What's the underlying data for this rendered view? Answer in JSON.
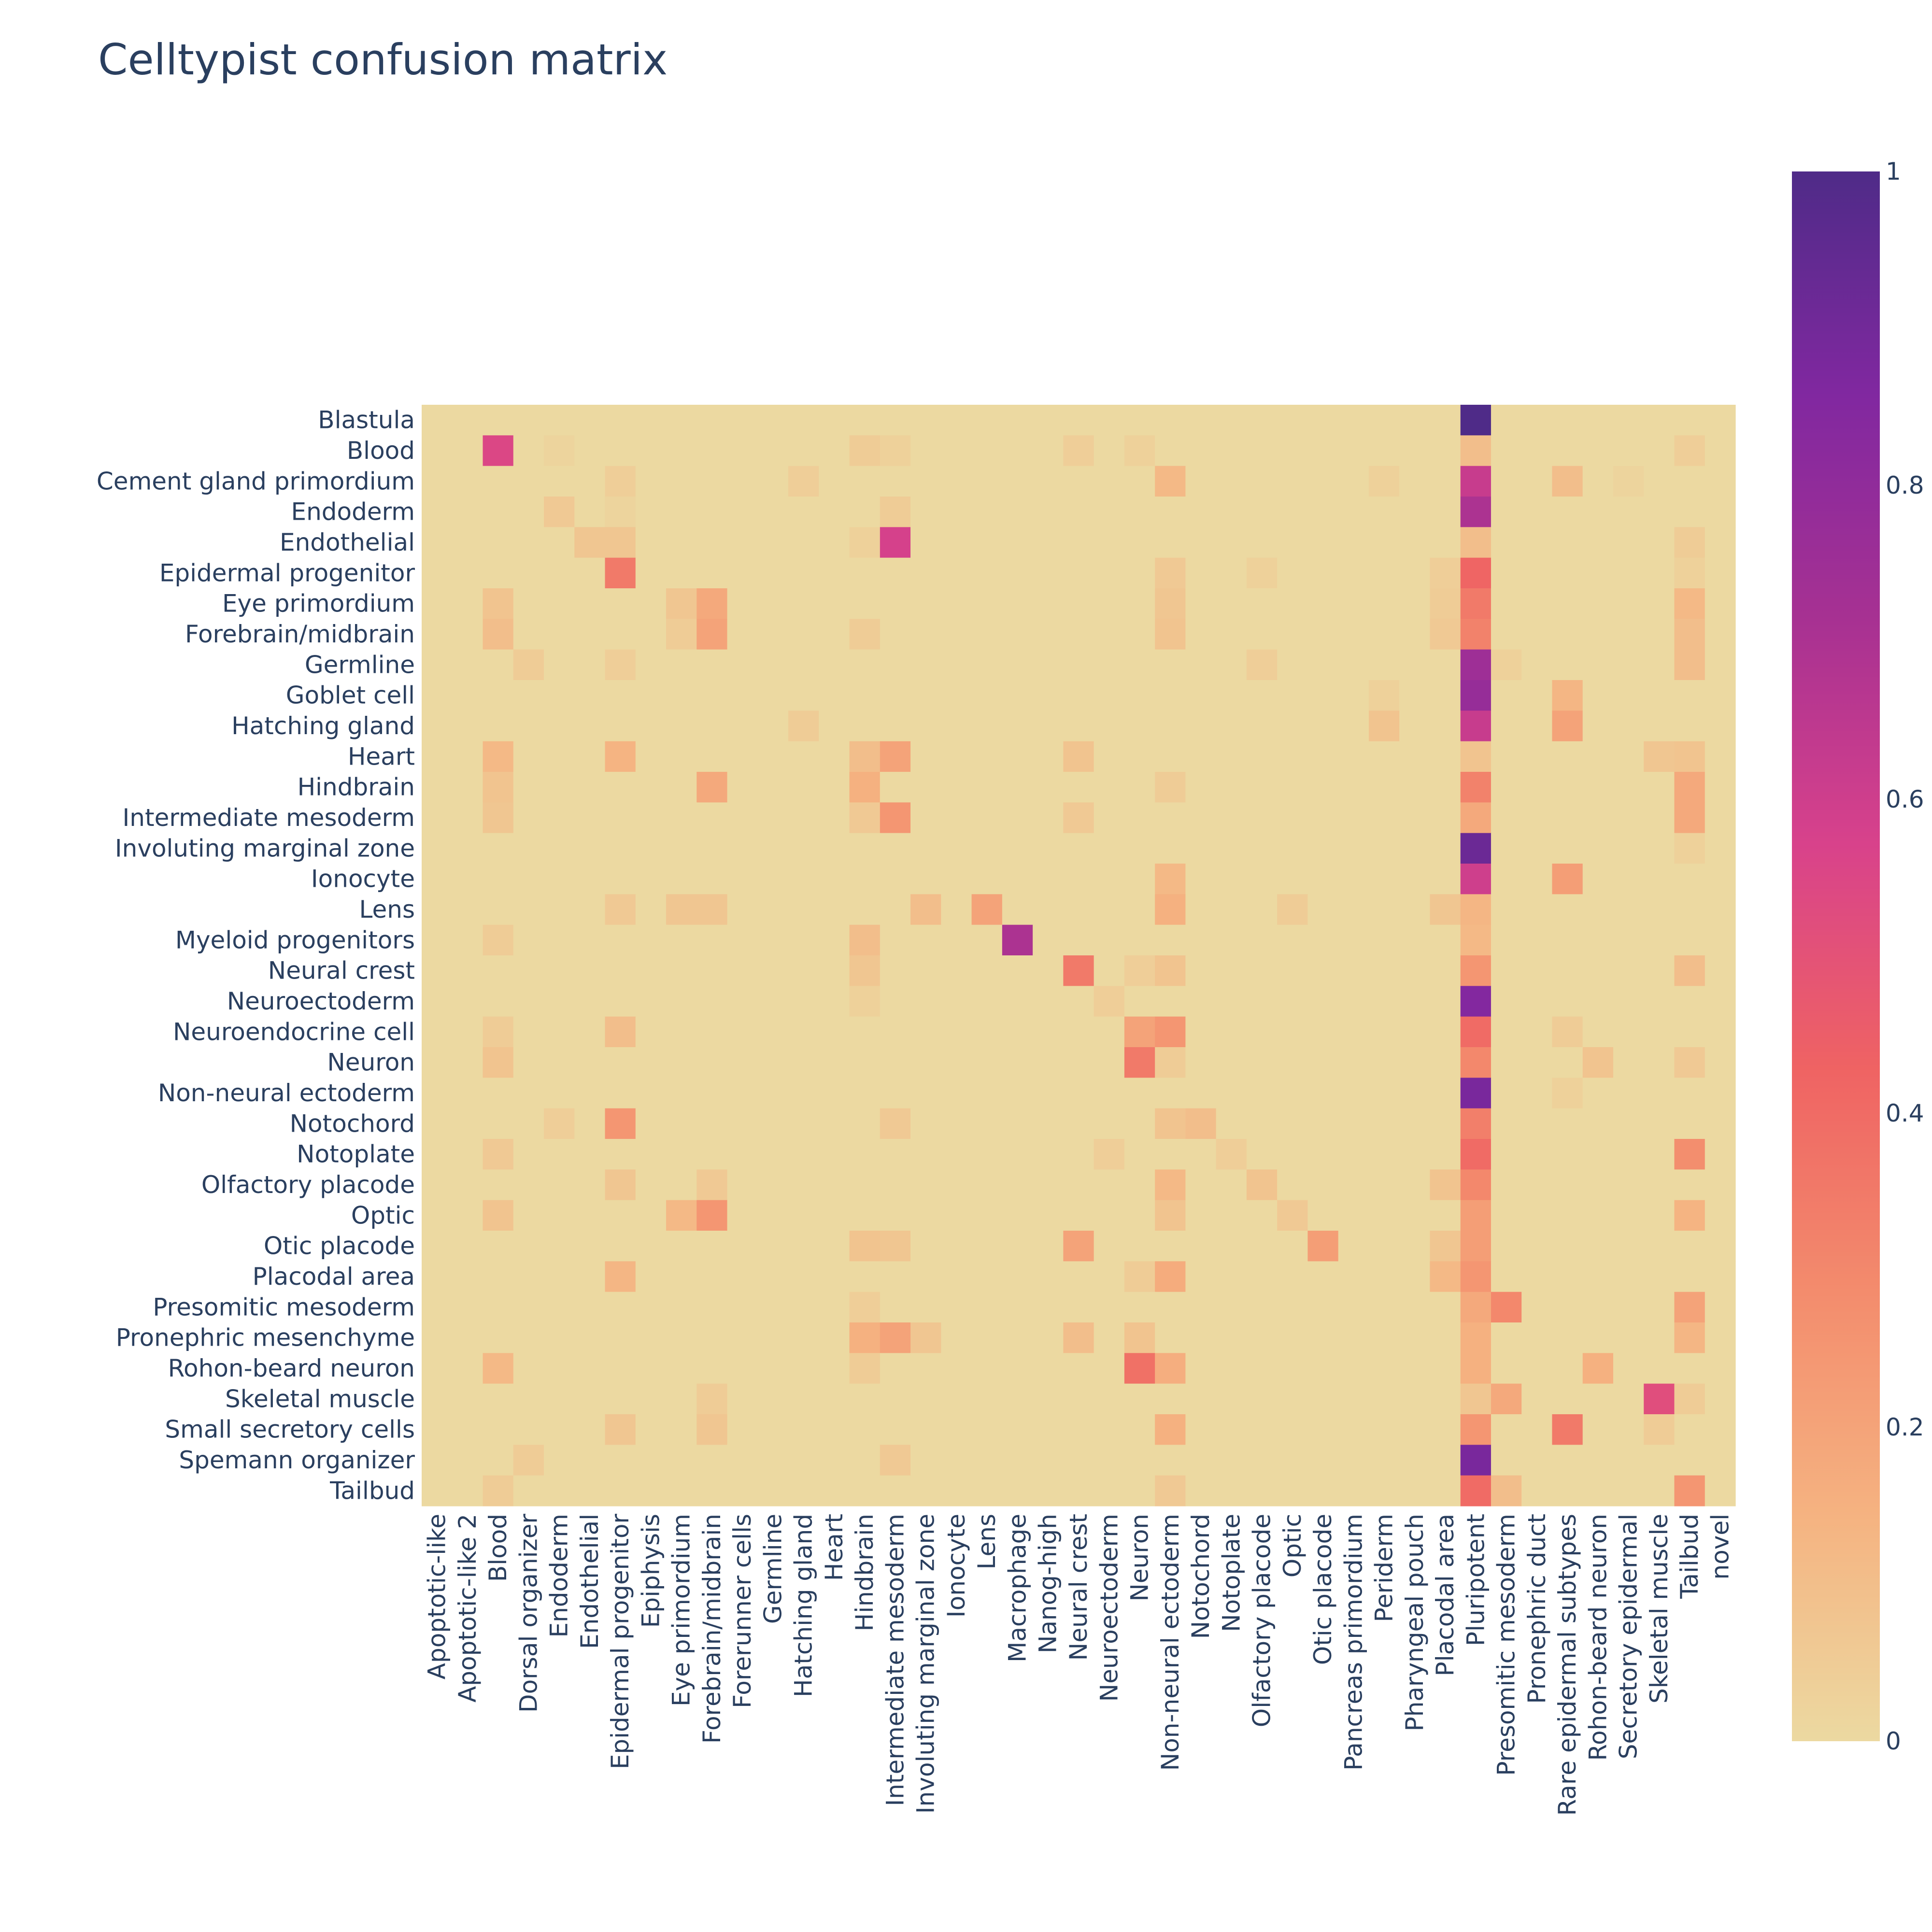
{
  "chart_data": {
    "type": "heatmap",
    "title": "Celltypist confusion matrix",
    "rows": [
      "Blastula",
      "Blood",
      "Cement gland primordium",
      "Endoderm",
      "Endothelial",
      "Epidermal progenitor",
      "Eye primordium",
      "Forebrain/midbrain",
      "Germline",
      "Goblet cell",
      "Hatching gland",
      "Heart",
      "Hindbrain",
      "Intermediate mesoderm",
      "Involuting marginal zone",
      "Ionocyte",
      "Lens",
      "Myeloid progenitors",
      "Neural crest",
      "Neuroectoderm",
      "Neuroendocrine cell",
      "Neuron",
      "Non-neural ectoderm",
      "Notochord",
      "Notoplate",
      "Olfactory placode",
      "Optic",
      "Otic placode",
      "Placodal area",
      "Presomitic mesoderm",
      "Pronephric mesenchyme",
      "Rohon-beard neuron",
      "Skeletal muscle",
      "Small secretory cells",
      "Spemann organizer",
      "Tailbud"
    ],
    "columns": [
      "Apoptotic-like",
      "Apoptotic-like 2",
      "Blood",
      "Dorsal organizer",
      "Endoderm",
      "Endothelial",
      "Epidermal progenitor",
      "Epiphysis",
      "Eye primordium",
      "Forebrain/midbrain",
      "Forerunner cells",
      "Germline",
      "Hatching gland",
      "Heart",
      "Hindbrain",
      "Intermediate mesoderm",
      "Involuting marginal zone",
      "Ionocyte",
      "Lens",
      "Macrophage",
      "Nanog-high",
      "Neural crest",
      "Neuroectoderm",
      "Neuron",
      "Non-neural ectoderm",
      "Notochord",
      "Notoplate",
      "Olfactory placode",
      "Optic",
      "Otic placode",
      "Pancreas primordium",
      "Periderm",
      "Pharyngeal pouch",
      "Placodal area",
      "Pluripotent",
      "Presomitic mesoderm",
      "Pronephric duct",
      "Rare epidermal subtypes",
      "Rohon-beard neuron",
      "Secretory epidermal",
      "Skeletal muscle",
      "Tailbud",
      "novel"
    ],
    "cells": [
      {
        "r": 0,
        "c": 34,
        "v": 1.0
      },
      {
        "r": 1,
        "c": 2,
        "v": 0.55
      },
      {
        "r": 1,
        "c": 34,
        "v": 0.1
      },
      {
        "r": 1,
        "c": 14,
        "v": 0.05
      },
      {
        "r": 1,
        "c": 21,
        "v": 0.04
      },
      {
        "r": 1,
        "c": 23,
        "v": 0.03
      },
      {
        "r": 1,
        "c": 41,
        "v": 0.04
      },
      {
        "r": 1,
        "c": 4,
        "v": 0.02
      },
      {
        "r": 1,
        "c": 15,
        "v": 0.03
      },
      {
        "r": 2,
        "c": 34,
        "v": 0.62
      },
      {
        "r": 2,
        "c": 24,
        "v": 0.12
      },
      {
        "r": 2,
        "c": 37,
        "v": 0.1
      },
      {
        "r": 2,
        "c": 12,
        "v": 0.04
      },
      {
        "r": 2,
        "c": 6,
        "v": 0.04
      },
      {
        "r": 2,
        "c": 31,
        "v": 0.03
      },
      {
        "r": 2,
        "c": 39,
        "v": 0.02
      },
      {
        "r": 3,
        "c": 34,
        "v": 0.7
      },
      {
        "r": 3,
        "c": 4,
        "v": 0.06
      },
      {
        "r": 3,
        "c": 15,
        "v": 0.05
      },
      {
        "r": 3,
        "c": 6,
        "v": 0.02
      },
      {
        "r": 4,
        "c": 15,
        "v": 0.58
      },
      {
        "r": 4,
        "c": 34,
        "v": 0.1
      },
      {
        "r": 4,
        "c": 5,
        "v": 0.07
      },
      {
        "r": 4,
        "c": 6,
        "v": 0.07
      },
      {
        "r": 4,
        "c": 41,
        "v": 0.05
      },
      {
        "r": 4,
        "c": 14,
        "v": 0.03
      },
      {
        "r": 5,
        "c": 6,
        "v": 0.35
      },
      {
        "r": 5,
        "c": 34,
        "v": 0.42
      },
      {
        "r": 5,
        "c": 24,
        "v": 0.06
      },
      {
        "r": 5,
        "c": 33,
        "v": 0.04
      },
      {
        "r": 5,
        "c": 27,
        "v": 0.03
      },
      {
        "r": 5,
        "c": 41,
        "v": 0.03
      },
      {
        "r": 6,
        "c": 34,
        "v": 0.35
      },
      {
        "r": 6,
        "c": 9,
        "v": 0.18
      },
      {
        "r": 6,
        "c": 8,
        "v": 0.07
      },
      {
        "r": 6,
        "c": 2,
        "v": 0.08
      },
      {
        "r": 6,
        "c": 24,
        "v": 0.07
      },
      {
        "r": 6,
        "c": 41,
        "v": 0.12
      },
      {
        "r": 6,
        "c": 33,
        "v": 0.05
      },
      {
        "r": 7,
        "c": 34,
        "v": 0.32
      },
      {
        "r": 7,
        "c": 9,
        "v": 0.2
      },
      {
        "r": 7,
        "c": 2,
        "v": 0.1
      },
      {
        "r": 7,
        "c": 24,
        "v": 0.08
      },
      {
        "r": 7,
        "c": 8,
        "v": 0.05
      },
      {
        "r": 7,
        "c": 41,
        "v": 0.1
      },
      {
        "r": 7,
        "c": 14,
        "v": 0.05
      },
      {
        "r": 7,
        "c": 33,
        "v": 0.06
      },
      {
        "r": 8,
        "c": 34,
        "v": 0.75
      },
      {
        "r": 8,
        "c": 41,
        "v": 0.1
      },
      {
        "r": 8,
        "c": 3,
        "v": 0.05
      },
      {
        "r": 8,
        "c": 6,
        "v": 0.04
      },
      {
        "r": 8,
        "c": 27,
        "v": 0.04
      },
      {
        "r": 8,
        "c": 35,
        "v": 0.03
      },
      {
        "r": 9,
        "c": 34,
        "v": 0.78
      },
      {
        "r": 9,
        "c": 37,
        "v": 0.13
      },
      {
        "r": 9,
        "c": 31,
        "v": 0.03
      },
      {
        "r": 10,
        "c": 34,
        "v": 0.62
      },
      {
        "r": 10,
        "c": 37,
        "v": 0.2
      },
      {
        "r": 10,
        "c": 31,
        "v": 0.08
      },
      {
        "r": 10,
        "c": 12,
        "v": 0.05
      },
      {
        "r": 11,
        "c": 15,
        "v": 0.2
      },
      {
        "r": 11,
        "c": 2,
        "v": 0.12
      },
      {
        "r": 11,
        "c": 6,
        "v": 0.14
      },
      {
        "r": 11,
        "c": 14,
        "v": 0.1
      },
      {
        "r": 11,
        "c": 34,
        "v": 0.08
      },
      {
        "r": 11,
        "c": 21,
        "v": 0.08
      },
      {
        "r": 11,
        "c": 40,
        "v": 0.07
      },
      {
        "r": 11,
        "c": 41,
        "v": 0.08
      },
      {
        "r": 12,
        "c": 34,
        "v": 0.32
      },
      {
        "r": 12,
        "c": 9,
        "v": 0.18
      },
      {
        "r": 12,
        "c": 14,
        "v": 0.15
      },
      {
        "r": 12,
        "c": 41,
        "v": 0.18
      },
      {
        "r": 12,
        "c": 2,
        "v": 0.08
      },
      {
        "r": 12,
        "c": 24,
        "v": 0.05
      },
      {
        "r": 13,
        "c": 15,
        "v": 0.25
      },
      {
        "r": 13,
        "c": 34,
        "v": 0.18
      },
      {
        "r": 13,
        "c": 41,
        "v": 0.18
      },
      {
        "r": 13,
        "c": 2,
        "v": 0.07
      },
      {
        "r": 13,
        "c": 21,
        "v": 0.06
      },
      {
        "r": 13,
        "c": 14,
        "v": 0.06
      },
      {
        "r": 14,
        "c": 34,
        "v": 0.92
      },
      {
        "r": 14,
        "c": 41,
        "v": 0.03
      },
      {
        "r": 15,
        "c": 34,
        "v": 0.6
      },
      {
        "r": 15,
        "c": 37,
        "v": 0.22
      },
      {
        "r": 15,
        "c": 24,
        "v": 0.12
      },
      {
        "r": 16,
        "c": 18,
        "v": 0.2
      },
      {
        "r": 16,
        "c": 24,
        "v": 0.15
      },
      {
        "r": 16,
        "c": 34,
        "v": 0.13
      },
      {
        "r": 16,
        "c": 16,
        "v": 0.1
      },
      {
        "r": 16,
        "c": 8,
        "v": 0.07
      },
      {
        "r": 16,
        "c": 9,
        "v": 0.07
      },
      {
        "r": 16,
        "c": 6,
        "v": 0.06
      },
      {
        "r": 16,
        "c": 33,
        "v": 0.07
      },
      {
        "r": 16,
        "c": 28,
        "v": 0.05
      },
      {
        "r": 17,
        "c": 19,
        "v": 0.7
      },
      {
        "r": 17,
        "c": 34,
        "v": 0.12
      },
      {
        "r": 17,
        "c": 14,
        "v": 0.1
      },
      {
        "r": 17,
        "c": 2,
        "v": 0.05
      },
      {
        "r": 18,
        "c": 21,
        "v": 0.35
      },
      {
        "r": 18,
        "c": 34,
        "v": 0.25
      },
      {
        "r": 18,
        "c": 41,
        "v": 0.1
      },
      {
        "r": 18,
        "c": 24,
        "v": 0.08
      },
      {
        "r": 18,
        "c": 14,
        "v": 0.07
      },
      {
        "r": 18,
        "c": 23,
        "v": 0.04
      },
      {
        "r": 19,
        "c": 34,
        "v": 0.85
      },
      {
        "r": 19,
        "c": 22,
        "v": 0.04
      },
      {
        "r": 19,
        "c": 14,
        "v": 0.03
      },
      {
        "r": 20,
        "c": 34,
        "v": 0.4
      },
      {
        "r": 20,
        "c": 24,
        "v": 0.25
      },
      {
        "r": 20,
        "c": 23,
        "v": 0.2
      },
      {
        "r": 20,
        "c": 6,
        "v": 0.1
      },
      {
        "r": 20,
        "c": 37,
        "v": 0.05
      },
      {
        "r": 20,
        "c": 2,
        "v": 0.05
      },
      {
        "r": 21,
        "c": 23,
        "v": 0.35
      },
      {
        "r": 21,
        "c": 34,
        "v": 0.3
      },
      {
        "r": 21,
        "c": 2,
        "v": 0.08
      },
      {
        "r": 21,
        "c": 38,
        "v": 0.08
      },
      {
        "r": 21,
        "c": 41,
        "v": 0.06
      },
      {
        "r": 21,
        "c": 24,
        "v": 0.05
      },
      {
        "r": 22,
        "c": 34,
        "v": 0.88
      },
      {
        "r": 22,
        "c": 37,
        "v": 0.03
      },
      {
        "r": 23,
        "c": 6,
        "v": 0.25
      },
      {
        "r": 23,
        "c": 34,
        "v": 0.33
      },
      {
        "r": 23,
        "c": 25,
        "v": 0.1
      },
      {
        "r": 23,
        "c": 24,
        "v": 0.08
      },
      {
        "r": 23,
        "c": 15,
        "v": 0.06
      },
      {
        "r": 23,
        "c": 4,
        "v": 0.04
      },
      {
        "r": 24,
        "c": 34,
        "v": 0.4
      },
      {
        "r": 24,
        "c": 41,
        "v": 0.28
      },
      {
        "r": 24,
        "c": 2,
        "v": 0.06
      },
      {
        "r": 24,
        "c": 22,
        "v": 0.04
      },
      {
        "r": 24,
        "c": 26,
        "v": 0.04
      },
      {
        "r": 25,
        "c": 34,
        "v": 0.3
      },
      {
        "r": 25,
        "c": 24,
        "v": 0.12
      },
      {
        "r": 25,
        "c": 27,
        "v": 0.08
      },
      {
        "r": 25,
        "c": 33,
        "v": 0.08
      },
      {
        "r": 25,
        "c": 6,
        "v": 0.07
      },
      {
        "r": 25,
        "c": 9,
        "v": 0.06
      },
      {
        "r": 26,
        "c": 9,
        "v": 0.25
      },
      {
        "r": 26,
        "c": 34,
        "v": 0.22
      },
      {
        "r": 26,
        "c": 8,
        "v": 0.12
      },
      {
        "r": 26,
        "c": 41,
        "v": 0.14
      },
      {
        "r": 26,
        "c": 2,
        "v": 0.08
      },
      {
        "r": 26,
        "c": 24,
        "v": 0.08
      },
      {
        "r": 26,
        "c": 28,
        "v": 0.06
      },
      {
        "r": 27,
        "c": 29,
        "v": 0.22
      },
      {
        "r": 27,
        "c": 21,
        "v": 0.2
      },
      {
        "r": 27,
        "c": 34,
        "v": 0.22
      },
      {
        "r": 27,
        "c": 14,
        "v": 0.08
      },
      {
        "r": 27,
        "c": 15,
        "v": 0.07
      },
      {
        "r": 27,
        "c": 33,
        "v": 0.07
      },
      {
        "r": 28,
        "c": 34,
        "v": 0.25
      },
      {
        "r": 28,
        "c": 24,
        "v": 0.17
      },
      {
        "r": 28,
        "c": 6,
        "v": 0.13
      },
      {
        "r": 28,
        "c": 33,
        "v": 0.12
      },
      {
        "r": 28,
        "c": 23,
        "v": 0.05
      },
      {
        "r": 29,
        "c": 35,
        "v": 0.3
      },
      {
        "r": 29,
        "c": 34,
        "v": 0.18
      },
      {
        "r": 29,
        "c": 41,
        "v": 0.2
      },
      {
        "r": 29,
        "c": 14,
        "v": 0.04
      },
      {
        "r": 30,
        "c": 15,
        "v": 0.2
      },
      {
        "r": 30,
        "c": 14,
        "v": 0.15
      },
      {
        "r": 30,
        "c": 34,
        "v": 0.15
      },
      {
        "r": 30,
        "c": 21,
        "v": 0.1
      },
      {
        "r": 30,
        "c": 23,
        "v": 0.08
      },
      {
        "r": 30,
        "c": 41,
        "v": 0.13
      },
      {
        "r": 30,
        "c": 16,
        "v": 0.07
      },
      {
        "r": 31,
        "c": 23,
        "v": 0.38
      },
      {
        "r": 31,
        "c": 24,
        "v": 0.16
      },
      {
        "r": 31,
        "c": 38,
        "v": 0.15
      },
      {
        "r": 31,
        "c": 34,
        "v": 0.15
      },
      {
        "r": 31,
        "c": 2,
        "v": 0.12
      },
      {
        "r": 31,
        "c": 14,
        "v": 0.05
      },
      {
        "r": 32,
        "c": 40,
        "v": 0.52
      },
      {
        "r": 32,
        "c": 35,
        "v": 0.18
      },
      {
        "r": 32,
        "c": 9,
        "v": 0.05
      },
      {
        "r": 32,
        "c": 34,
        "v": 0.07
      },
      {
        "r": 32,
        "c": 41,
        "v": 0.05
      },
      {
        "r": 33,
        "c": 37,
        "v": 0.35
      },
      {
        "r": 33,
        "c": 34,
        "v": 0.25
      },
      {
        "r": 33,
        "c": 24,
        "v": 0.15
      },
      {
        "r": 33,
        "c": 6,
        "v": 0.07
      },
      {
        "r": 33,
        "c": 9,
        "v": 0.07
      },
      {
        "r": 33,
        "c": 40,
        "v": 0.05
      },
      {
        "r": 34,
        "c": 34,
        "v": 0.88
      },
      {
        "r": 34,
        "c": 15,
        "v": 0.06
      },
      {
        "r": 34,
        "c": 3,
        "v": 0.05
      },
      {
        "r": 35,
        "c": 34,
        "v": 0.4
      },
      {
        "r": 35,
        "c": 41,
        "v": 0.25
      },
      {
        "r": 35,
        "c": 35,
        "v": 0.1
      },
      {
        "r": 35,
        "c": 24,
        "v": 0.06
      },
      {
        "r": 35,
        "c": 2,
        "v": 0.05
      }
    ],
    "colorscale": [
      "#ecd9a1",
      "#f5b381",
      "#f38c6d",
      "#ef6363",
      "#d8428b",
      "#a73192",
      "#8128a0",
      "#4f2b88"
    ],
    "zmin": 0,
    "zmax": 1,
    "colorbar_ticks": [
      "0",
      "0.2",
      "0.4",
      "0.6",
      "0.8",
      "1"
    ]
  }
}
